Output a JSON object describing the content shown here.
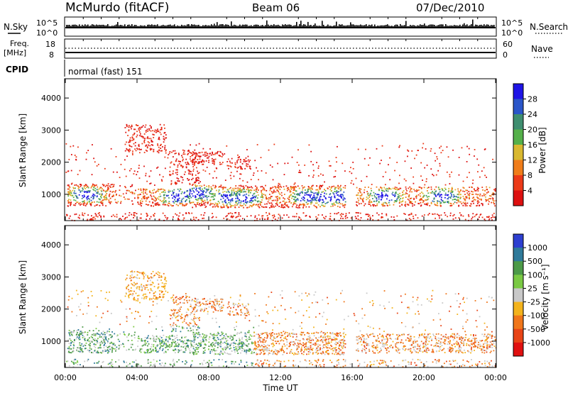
{
  "header": {
    "station": "McMurdo (fitACF)",
    "beam": "Beam 06",
    "date": "07/Dec/2010"
  },
  "top_panels": {
    "nsky_label": "N.Sky",
    "nsky_ticks": [
      "10^5",
      "10^0"
    ],
    "nsearch_label": "N.Search",
    "nsearch_ticks": [
      "10^5",
      "10^0"
    ],
    "freq_label": "Freq.",
    "freq_unit": "[MHz]",
    "freq_ticks": [
      "18",
      "8"
    ],
    "nave_label": "Nave",
    "nave_ticks": [
      "60",
      "0"
    ],
    "cpid_label": "CPID",
    "cpid_value": "normal (fast) 151"
  },
  "chart_data": [
    {
      "type": "heatmap",
      "panel": "power",
      "ylabel": "Slant Range [km]",
      "yticks": [
        "1000",
        "2000",
        "3000",
        "4000"
      ],
      "ylim": [
        180,
        4600
      ],
      "xlim": [
        0,
        24
      ],
      "colorbar_label": "Power [dB]",
      "colorbar_ticks": [
        "4",
        "8",
        "12",
        "16",
        "20",
        "24",
        "28"
      ],
      "colorbar_colors": [
        "#1e14e6",
        "#2b56c9",
        "#3f8e70",
        "#55b04a",
        "#d9b830",
        "#f07d1a",
        "#ec3a18",
        "#dd1010"
      ]
    },
    {
      "type": "heatmap",
      "panel": "velocity",
      "ylabel": "Slant Range [km]",
      "yticks": [
        "1000",
        "2000",
        "3000",
        "4000"
      ],
      "ylim": [
        180,
        4600
      ],
      "xlim": [
        0,
        24
      ],
      "xlabel": "Time UT",
      "xticks": [
        "00:00",
        "04:00",
        "08:00",
        "12:00",
        "16:00",
        "20:00",
        "00:00"
      ],
      "colorbar_label": "Velocity [m s⁻¹]",
      "colorbar_ticks": [
        "1000",
        "500",
        "100",
        "25",
        "-25",
        "-100",
        "-500",
        "-1000"
      ],
      "colorbar_colors": [
        "#2d3fd0",
        "#2f7a9a",
        "#4c9a48",
        "#7ac943",
        "#c8c8c8",
        "#f3b31c",
        "#f0761a",
        "#e84416",
        "#e01010"
      ]
    }
  ]
}
